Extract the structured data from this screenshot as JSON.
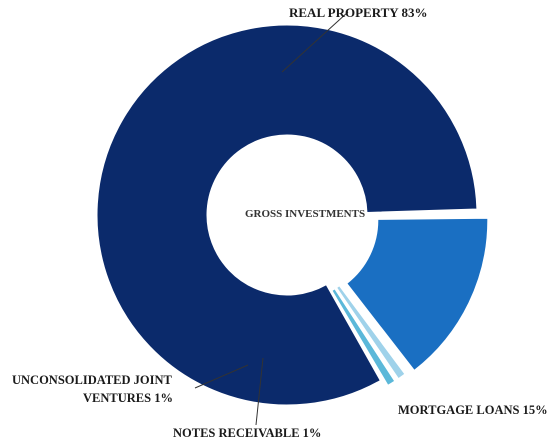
{
  "chart_data": {
    "type": "pie",
    "style": "donut",
    "center_label": "GROSS INVESTMENTS",
    "slices": [
      {
        "name": "REAL PROPERTY",
        "value": 83,
        "label": "REAL PROPERTY 83%",
        "color": "#0b2a6b"
      },
      {
        "name": "MORTGAGE LOANS",
        "value": 15,
        "label": "MORTGAGE LOANS 15%",
        "color": "#1a6fc2"
      },
      {
        "name": "NOTES RECEIVABLE",
        "value": 1,
        "label": "NOTES RECEIVABLE 1%",
        "color": "#9fd2ea"
      },
      {
        "name": "UNCONSOLIDATED JOINT VENTURES",
        "value": 1,
        "label_lines": [
          "UNCONSOLIDATED JOINT",
          "VENTURES 1%"
        ],
        "color": "#5bb8d9"
      }
    ]
  }
}
